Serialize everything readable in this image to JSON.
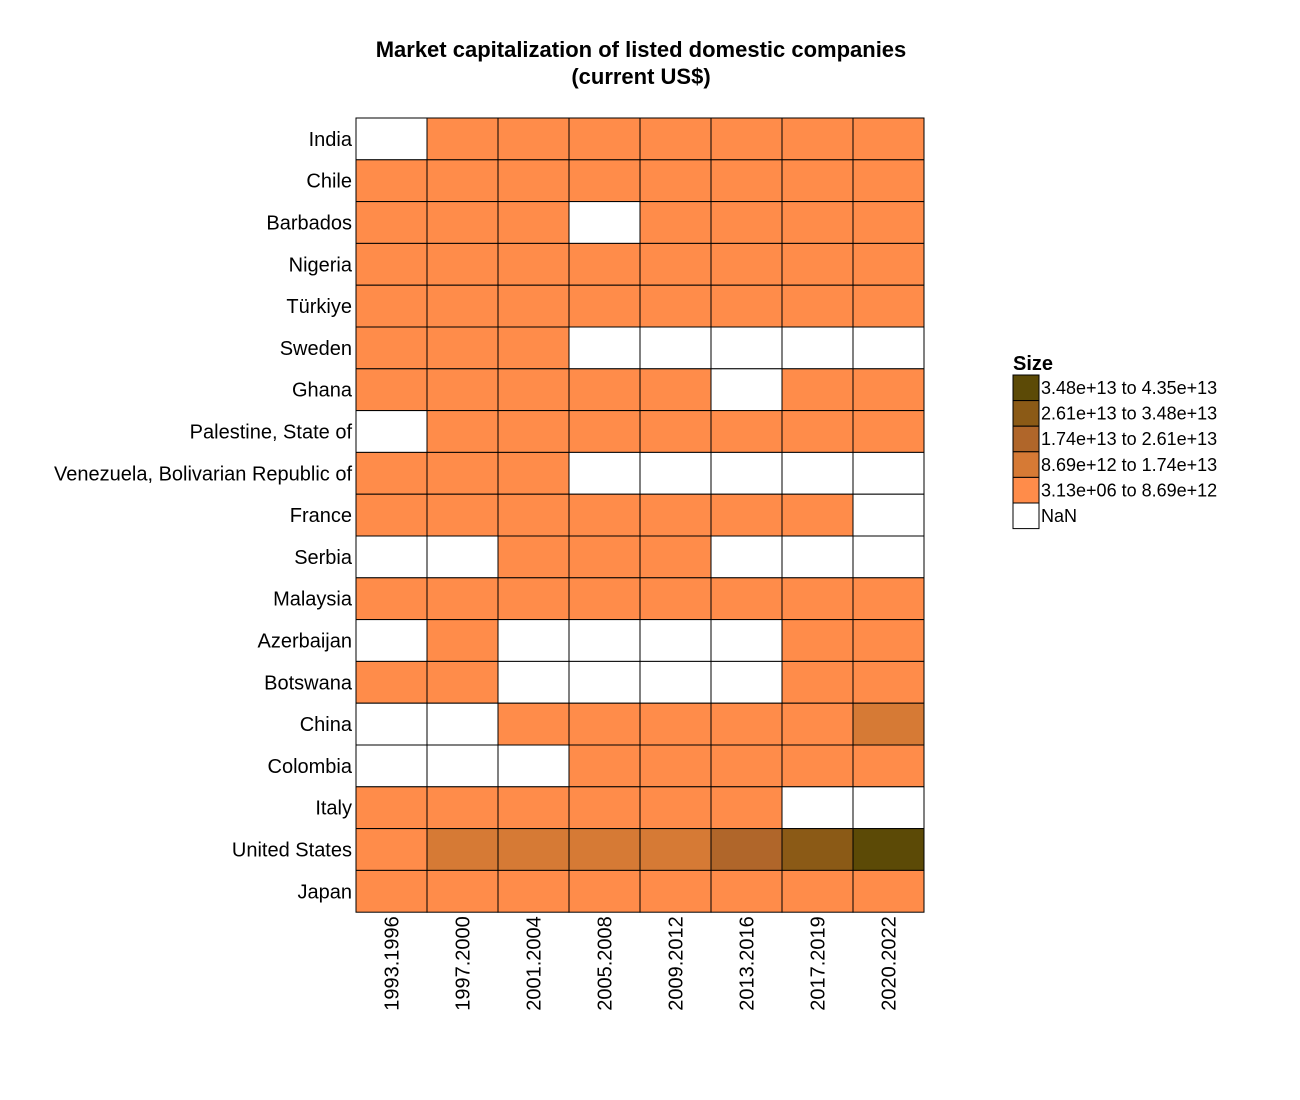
{
  "chart_data": {
    "type": "heatmap",
    "title": "Market capitalization of listed domestic companies",
    "subtitle": "(current US$)",
    "xlabel": "",
    "ylabel": "",
    "x_categories": [
      "1993.1996",
      "1997.2000",
      "2001.2004",
      "2005.2008",
      "2009.2012",
      "2013.2016",
      "2017.2019",
      "2020.2022"
    ],
    "y_categories": [
      "India",
      "Chile",
      "Barbados",
      "Nigeria",
      "Türkiye",
      "Sweden",
      "Ghana",
      "Palestine, State of",
      "Venezuela, Bolivarian Republic of",
      "France",
      "Serbia",
      "Malaysia",
      "Azerbaijan",
      "Botswana",
      "China",
      "Colombia",
      "Italy",
      "United States",
      "Japan"
    ],
    "legend": {
      "title": "Size",
      "position": "right",
      "entries": [
        {
          "label": "3.48e+13 to 4.35e+13",
          "color": "#5c4a06"
        },
        {
          "label": "2.61e+13 to 3.48e+13",
          "color": "#8b5a16"
        },
        {
          "label": "1.74e+13 to 2.61e+13",
          "color": "#b0662a"
        },
        {
          "label": "8.69e+12 to 1.74e+13",
          "color": "#d67a35"
        },
        {
          "label": "3.13e+06 to 8.69e+12",
          "color": "#ff8c4a"
        },
        {
          "label": "NaN",
          "color": "#ffffff"
        }
      ]
    },
    "bin_labels": [
      "NaN",
      "3.13e+06 to 8.69e+12",
      "8.69e+12 to 1.74e+13",
      "1.74e+13 to 2.61e+13",
      "2.61e+13 to 3.48e+13",
      "3.48e+13 to 4.35e+13"
    ],
    "cell_bins": [
      [
        0,
        1,
        1,
        1,
        1,
        1,
        1,
        1
      ],
      [
        1,
        1,
        1,
        1,
        1,
        1,
        1,
        1
      ],
      [
        1,
        1,
        1,
        0,
        1,
        1,
        1,
        1
      ],
      [
        1,
        1,
        1,
        1,
        1,
        1,
        1,
        1
      ],
      [
        1,
        1,
        1,
        1,
        1,
        1,
        1,
        1
      ],
      [
        1,
        1,
        1,
        0,
        0,
        0,
        0,
        0
      ],
      [
        1,
        1,
        1,
        1,
        1,
        0,
        1,
        1
      ],
      [
        0,
        1,
        1,
        1,
        1,
        1,
        1,
        1
      ],
      [
        1,
        1,
        1,
        0,
        0,
        0,
        0,
        0
      ],
      [
        1,
        1,
        1,
        1,
        1,
        1,
        1,
        0
      ],
      [
        0,
        0,
        1,
        1,
        1,
        0,
        0,
        0
      ],
      [
        1,
        1,
        1,
        1,
        1,
        1,
        1,
        1
      ],
      [
        0,
        1,
        0,
        0,
        0,
        0,
        1,
        1
      ],
      [
        1,
        1,
        0,
        0,
        0,
        0,
        1,
        1
      ],
      [
        0,
        0,
        1,
        1,
        1,
        1,
        1,
        2
      ],
      [
        0,
        0,
        0,
        1,
        1,
        1,
        1,
        1
      ],
      [
        1,
        1,
        1,
        1,
        1,
        1,
        0,
        0
      ],
      [
        1,
        2,
        2,
        2,
        2,
        3,
        4,
        5
      ],
      [
        1,
        1,
        1,
        1,
        1,
        1,
        1,
        1
      ]
    ],
    "bin_colors": [
      "#ffffff",
      "#ff8c4a",
      "#d67a35",
      "#b0662a",
      "#8b5a16",
      "#5c4a06"
    ],
    "grid": true
  }
}
